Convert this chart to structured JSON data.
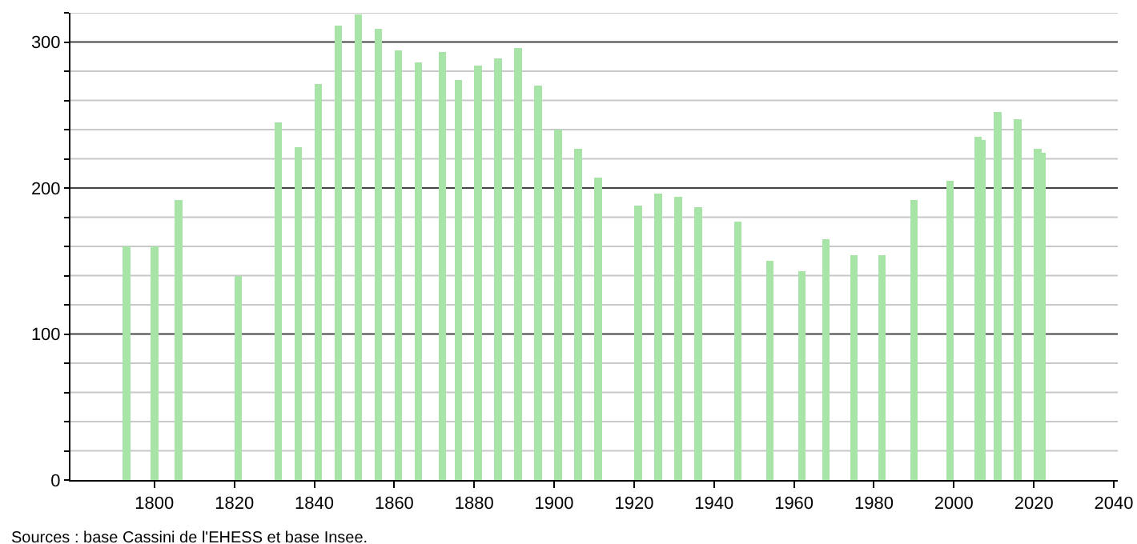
{
  "chart_data": {
    "type": "bar",
    "x": [
      1793,
      1800,
      1806,
      1821,
      1831,
      1836,
      1841,
      1846,
      1851,
      1856,
      1861,
      1866,
      1872,
      1876,
      1881,
      1886,
      1891,
      1896,
      1901,
      1906,
      1911,
      1921,
      1926,
      1931,
      1936,
      1946,
      1954,
      1962,
      1968,
      1975,
      1982,
      1990,
      1999,
      2006,
      2007,
      2011,
      2016,
      2021,
      2022
    ],
    "values": [
      160,
      160,
      192,
      140,
      245,
      228,
      271,
      311,
      319,
      309,
      294,
      286,
      293,
      274,
      284,
      289,
      296,
      270,
      240,
      227,
      207,
      188,
      196,
      194,
      187,
      177,
      150,
      143,
      165,
      154,
      154,
      192,
      205,
      235,
      233,
      252,
      247,
      227,
      224
    ],
    "color": "#a8e4a8",
    "xlim": [
      1779,
      2041
    ],
    "xticks": [
      1800,
      1820,
      1840,
      1860,
      1880,
      1900,
      1920,
      1940,
      1960,
      1980,
      2000,
      2020,
      2040
    ],
    "ylim": [
      0,
      320
    ],
    "yticks": [
      0,
      {
        "value": 20,
        "label": null
      },
      {
        "value": 40,
        "label": null
      },
      {
        "value": 60,
        "label": null
      },
      {
        "value": 80,
        "label": null
      },
      100,
      {
        "value": 120,
        "label": null
      },
      {
        "value": 140,
        "label": null
      },
      {
        "value": 160,
        "label": null
      },
      {
        "value": 180,
        "label": null
      },
      200,
      {
        "value": 220,
        "label": null
      },
      {
        "value": 240,
        "label": null
      },
      {
        "value": 260,
        "label": null
      },
      {
        "value": 280,
        "label": null
      },
      300,
      {
        "value": 320,
        "label": null
      }
    ],
    "grid": "y",
    "annotations": [
      "Sources : base Cassini de l'EHESS et base Insee."
    ]
  }
}
